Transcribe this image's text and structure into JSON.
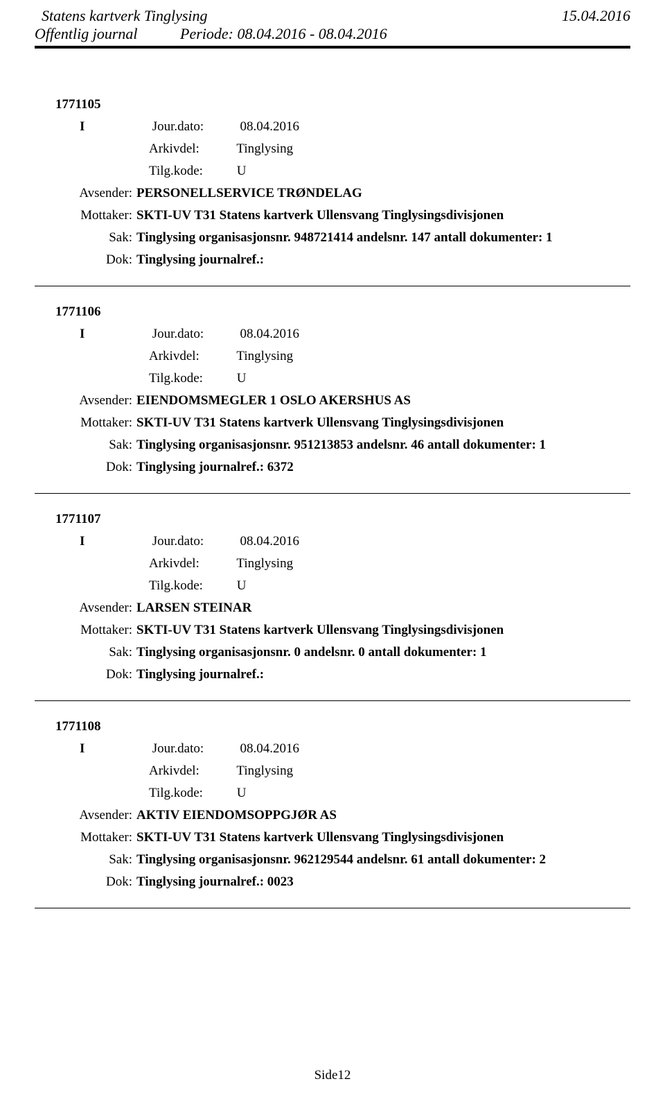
{
  "header": {
    "org": "Statens kartverk Tinglysing",
    "date": "15.04.2016",
    "subtitle": "Offentlig journal",
    "period": "Periode: 08.04.2016 - 08.04.2016"
  },
  "labels": {
    "jourdato": "Jour.dato:",
    "arkivdel": "Arkivdel:",
    "tilgkode": "Tilg.kode:",
    "avsender": "Avsender:",
    "mottaker": "Mottaker:",
    "sak": "Sak:",
    "dok": "Dok:"
  },
  "entries": [
    {
      "id": "1771105",
      "type": "I",
      "jourdato": "08.04.2016",
      "arkivdel": "Tinglysing",
      "tilgkode": "U",
      "avsender": "PERSONELLSERVICE TRØNDELAG",
      "mottaker": "SKTI-UV T31 Statens kartverk Ullensvang Tinglysingsdivisjonen",
      "sak": "Tinglysing organisasjonsnr. 948721414 andelsnr. 147 antall dokumenter: 1",
      "dok": "Tinglysing journalref.:"
    },
    {
      "id": "1771106",
      "type": "I",
      "jourdato": "08.04.2016",
      "arkivdel": "Tinglysing",
      "tilgkode": "U",
      "avsender": "EIENDOMSMEGLER 1 OSLO AKERSHUS AS",
      "mottaker": "SKTI-UV T31 Statens kartverk Ullensvang Tinglysingsdivisjonen",
      "sak": "Tinglysing organisasjonsnr. 951213853 andelsnr. 46 antall dokumenter: 1",
      "dok": "Tinglysing journalref.: 6372"
    },
    {
      "id": "1771107",
      "type": "I",
      "jourdato": "08.04.2016",
      "arkivdel": "Tinglysing",
      "tilgkode": "U",
      "avsender": "LARSEN STEINAR",
      "mottaker": "SKTI-UV T31 Statens kartverk Ullensvang Tinglysingsdivisjonen",
      "sak": "Tinglysing organisasjonsnr. 0 andelsnr. 0 antall dokumenter: 1",
      "dok": "Tinglysing journalref.:"
    },
    {
      "id": "1771108",
      "type": "I",
      "jourdato": "08.04.2016",
      "arkivdel": "Tinglysing",
      "tilgkode": "U",
      "avsender": "AKTIV EIENDOMSOPPGJØR AS",
      "mottaker": "SKTI-UV T31 Statens kartverk Ullensvang Tinglysingsdivisjonen",
      "sak": "Tinglysing organisasjonsnr. 962129544 andelsnr. 61 antall dokumenter: 2",
      "dok": "Tinglysing journalref.: 0023"
    }
  ],
  "footer": {
    "page": "Side12"
  }
}
